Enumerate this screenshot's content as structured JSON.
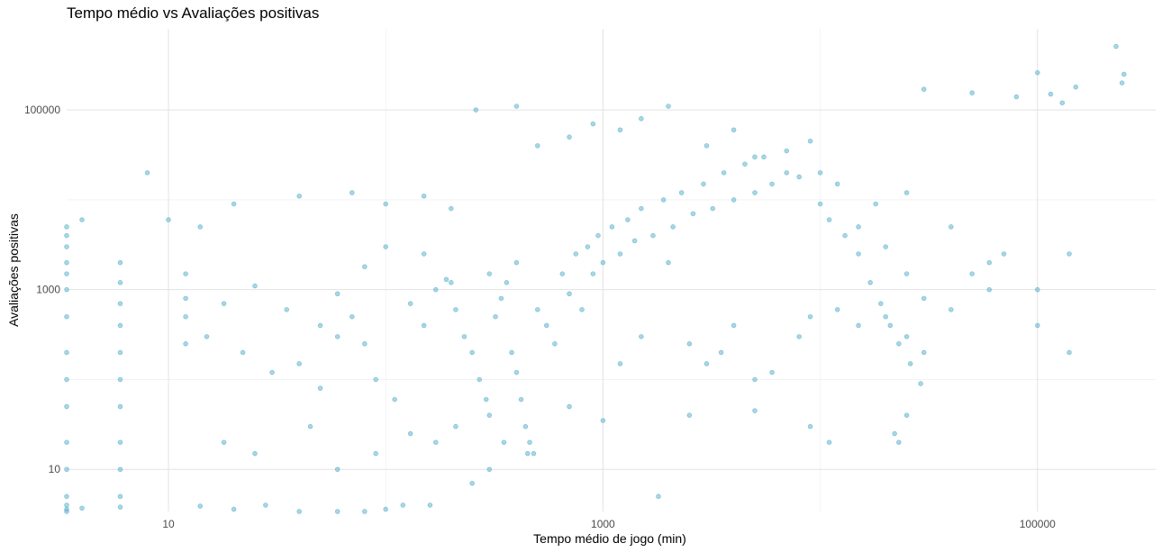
{
  "chart_data": {
    "type": "scatter",
    "title": "Tempo médio vs Avaliações positivas",
    "xlabel": "Tempo médio de jogo (min)",
    "ylabel": "Avaliações positivas",
    "x_scale": "log10",
    "y_scale": "log10",
    "xlim": [
      3.4,
      350000
    ],
    "ylim": [
      3.4,
      800000
    ],
    "x_ticks": [
      {
        "value": 10,
        "label": "10"
      },
      {
        "value": 1000,
        "label": "1000"
      },
      {
        "value": 100000,
        "label": "100000"
      }
    ],
    "y_ticks": [
      {
        "value": 10,
        "label": "10"
      },
      {
        "value": 1000,
        "label": "1000"
      },
      {
        "value": 100000,
        "label": "100000"
      }
    ],
    "grid": true,
    "legend": "none",
    "point_color": "#5fb7d0",
    "point_stroke": "#4aa3bd",
    "points": [
      [
        230000,
        510000
      ],
      [
        250000,
        250000
      ],
      [
        245000,
        200000
      ],
      [
        2000,
        2000
      ],
      [
        150000,
        180000
      ],
      [
        130000,
        120000
      ],
      [
        115000,
        150000
      ],
      [
        100000,
        260000
      ],
      [
        80000,
        140000
      ],
      [
        50000,
        155000
      ],
      [
        30000,
        170000
      ],
      [
        8,
        20000
      ],
      [
        4,
        6000
      ],
      [
        3.4,
        5000
      ],
      [
        3.4,
        4000
      ],
      [
        3.4,
        3000
      ],
      [
        3.4,
        2000
      ],
      [
        3.4,
        1500
      ],
      [
        3.4,
        1000
      ],
      [
        3.4,
        500
      ],
      [
        3.4,
        200
      ],
      [
        3.4,
        100
      ],
      [
        3.4,
        50
      ],
      [
        3.4,
        20
      ],
      [
        3.4,
        10
      ],
      [
        3.4,
        5
      ],
      [
        3.4,
        4
      ],
      [
        6,
        2000
      ],
      [
        6,
        1200
      ],
      [
        6,
        700
      ],
      [
        6,
        400
      ],
      [
        6,
        200
      ],
      [
        6,
        100
      ],
      [
        6,
        50
      ],
      [
        6,
        20
      ],
      [
        6,
        10
      ],
      [
        6,
        5
      ],
      [
        12,
        1500
      ],
      [
        12,
        800
      ],
      [
        12,
        500
      ],
      [
        12,
        250
      ],
      [
        10,
        6000
      ],
      [
        14,
        5000
      ],
      [
        20,
        9000
      ],
      [
        40,
        11000
      ],
      [
        70,
        12000
      ],
      [
        100,
        9000
      ],
      [
        150,
        11000
      ],
      [
        200,
        8000
      ],
      [
        260,
        100000
      ],
      [
        400,
        110000
      ],
      [
        500,
        40000
      ],
      [
        700,
        50000
      ],
      [
        900,
        70000
      ],
      [
        1200,
        60000
      ],
      [
        1500,
        80000
      ],
      [
        2000,
        110000
      ],
      [
        3000,
        40000
      ],
      [
        4000,
        60000
      ],
      [
        5000,
        30000
      ],
      [
        7000,
        20000
      ],
      [
        10000,
        20000
      ],
      [
        12000,
        15000
      ],
      [
        15000,
        5000
      ],
      [
        20000,
        3000
      ],
      [
        25000,
        1500
      ],
      [
        30000,
        800
      ],
      [
        40000,
        600
      ],
      [
        50000,
        1500
      ],
      [
        60000,
        2000
      ],
      [
        70000,
        2500
      ],
      [
        100000,
        1000
      ],
      [
        100000,
        400
      ],
      [
        140000,
        200
      ],
      [
        140000,
        2500
      ],
      [
        60000,
        1000
      ],
      [
        40000,
        5000
      ],
      [
        25000,
        12000
      ],
      [
        18000,
        9000
      ],
      [
        22000,
        25
      ],
      [
        23000,
        20
      ],
      [
        25000,
        40
      ],
      [
        9000,
        30
      ],
      [
        11000,
        20
      ],
      [
        5000,
        45
      ],
      [
        2500,
        40
      ],
      [
        1800,
        5
      ],
      [
        300,
        10
      ],
      [
        250,
        7
      ],
      [
        160,
        4
      ],
      [
        120,
        4
      ],
      [
        100,
        3.6
      ],
      [
        80,
        3.4
      ],
      [
        60,
        3.4
      ],
      [
        40,
        3.4
      ],
      [
        20,
        3.6
      ],
      [
        28,
        4
      ],
      [
        14,
        3.9
      ],
      [
        6,
        3.8
      ],
      [
        4,
        3.7
      ],
      [
        3.4,
        3.6
      ],
      [
        3.4,
        3.4
      ],
      [
        18,
        20
      ],
      [
        25,
        15
      ],
      [
        45,
        30
      ],
      [
        60,
        10
      ],
      [
        90,
        15
      ],
      [
        130,
        25
      ],
      [
        170,
        20
      ],
      [
        210,
        30
      ],
      [
        350,
        20
      ],
      [
        450,
        15
      ],
      [
        700,
        50
      ],
      [
        1000,
        35
      ],
      [
        1200,
        150
      ],
      [
        1500,
        300
      ],
      [
        2500,
        250
      ],
      [
        3000,
        150
      ],
      [
        3500,
        200
      ],
      [
        4000,
        400
      ],
      [
        5000,
        100
      ],
      [
        6000,
        120
      ],
      [
        8000,
        300
      ],
      [
        9000,
        500
      ],
      [
        12000,
        600
      ],
      [
        15000,
        400
      ],
      [
        20000,
        500
      ],
      [
        25000,
        300
      ],
      [
        30000,
        200
      ],
      [
        400,
        2000
      ],
      [
        300,
        1500
      ],
      [
        200,
        1200
      ],
      [
        150,
        2500
      ],
      [
        100,
        3000
      ],
      [
        80,
        1800
      ],
      [
        60,
        900
      ],
      [
        50,
        400
      ],
      [
        35,
        600
      ],
      [
        25,
        1100
      ],
      [
        18,
        700
      ],
      [
        15,
        300
      ],
      [
        22,
        200
      ],
      [
        30,
        120
      ],
      [
        40,
        150
      ],
      [
        50,
        80
      ],
      [
        60,
        300
      ],
      [
        70,
        500
      ],
      [
        80,
        250
      ],
      [
        90,
        100
      ],
      [
        110,
        60
      ],
      [
        130,
        700
      ],
      [
        150,
        400
      ],
      [
        170,
        1000
      ],
      [
        190,
        1300
      ],
      [
        210,
        600
      ],
      [
        230,
        300
      ],
      [
        250,
        200
      ],
      [
        270,
        100
      ],
      [
        290,
        60
      ],
      [
        300,
        40
      ],
      [
        320,
        500
      ],
      [
        340,
        800
      ],
      [
        360,
        1200
      ],
      [
        380,
        200
      ],
      [
        400,
        120
      ],
      [
        420,
        60
      ],
      [
        440,
        30
      ],
      [
        460,
        20
      ],
      [
        480,
        15
      ],
      [
        500,
        600
      ],
      [
        550,
        400
      ],
      [
        600,
        250
      ],
      [
        650,
        1500
      ],
      [
        700,
        900
      ],
      [
        750,
        2500
      ],
      [
        800,
        600
      ],
      [
        850,
        3000
      ],
      [
        900,
        1500
      ],
      [
        950,
        4000
      ],
      [
        1000,
        2000
      ],
      [
        1100,
        5000
      ],
      [
        1200,
        2500
      ],
      [
        1300,
        6000
      ],
      [
        1400,
        3500
      ],
      [
        1500,
        8000
      ],
      [
        1700,
        4000
      ],
      [
        1900,
        10000
      ],
      [
        2100,
        5000
      ],
      [
        2300,
        12000
      ],
      [
        2600,
        7000
      ],
      [
        2900,
        15000
      ],
      [
        3200,
        8000
      ],
      [
        3600,
        20000
      ],
      [
        4000,
        10000
      ],
      [
        4500,
        25000
      ],
      [
        5000,
        12000
      ],
      [
        5500,
        30000
      ],
      [
        6000,
        15000
      ],
      [
        7000,
        35000
      ],
      [
        8000,
        18000
      ],
      [
        9000,
        45000
      ],
      [
        10000,
        9000
      ],
      [
        11000,
        6000
      ],
      [
        13000,
        4000
      ],
      [
        15000,
        2500
      ],
      [
        17000,
        1200
      ],
      [
        19000,
        700
      ],
      [
        21000,
        400
      ],
      [
        23000,
        250
      ],
      [
        26000,
        150
      ],
      [
        29000,
        90
      ]
    ]
  }
}
